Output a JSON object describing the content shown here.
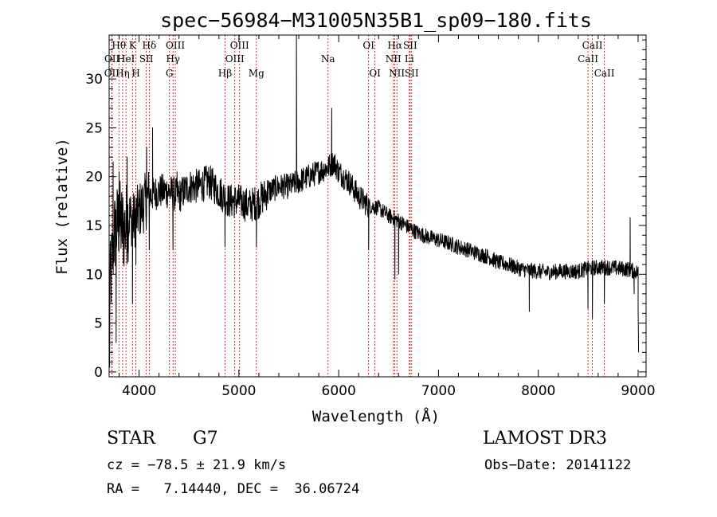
{
  "chart_data": {
    "type": "line",
    "title": "spec−56984−M31005N35B1_sp09−180.fits",
    "xlabel": "Wavelength (Å)",
    "ylabel": "Flux (relative)",
    "xlim": [
      3700,
      9080
    ],
    "ylim": [
      -0.5,
      34.5
    ],
    "x_ticks": [
      4000,
      5000,
      6000,
      7000,
      8000,
      9000
    ],
    "x_tick_labels": [
      "4000",
      "5000",
      "6000",
      "7000",
      "8000",
      "9000"
    ],
    "y_ticks": [
      0,
      5,
      10,
      15,
      20,
      25,
      30
    ],
    "y_tick_labels": [
      "0",
      "5",
      "10",
      "15",
      "20",
      "25",
      "30"
    ],
    "spectrum_knots": [
      [
        3700,
        7.5
      ],
      [
        3750,
        14
      ],
      [
        3800,
        15.5
      ],
      [
        3850,
        14.5
      ],
      [
        3900,
        16
      ],
      [
        3950,
        15.5
      ],
      [
        4000,
        16.5
      ],
      [
        4100,
        18
      ],
      [
        4200,
        18.5
      ],
      [
        4300,
        18.5
      ],
      [
        4400,
        18
      ],
      [
        4500,
        19
      ],
      [
        4600,
        19
      ],
      [
        4700,
        19.5
      ],
      [
        4800,
        18.5
      ],
      [
        4900,
        17.5
      ],
      [
        5000,
        17.5
      ],
      [
        5100,
        17
      ],
      [
        5200,
        17.5
      ],
      [
        5300,
        18.5
      ],
      [
        5400,
        19
      ],
      [
        5500,
        19
      ],
      [
        5600,
        19.5
      ],
      [
        5700,
        20
      ],
      [
        5800,
        20.5
      ],
      [
        5900,
        21
      ],
      [
        5950,
        21.5
      ],
      [
        6000,
        20.5
      ],
      [
        6100,
        19.5
      ],
      [
        6200,
        18
      ],
      [
        6300,
        17
      ],
      [
        6400,
        16.8
      ],
      [
        6500,
        16
      ],
      [
        6600,
        15.5
      ],
      [
        6700,
        14.8
      ],
      [
        6800,
        14.2
      ],
      [
        6900,
        13.8
      ],
      [
        7000,
        13.5
      ],
      [
        7100,
        13.2
      ],
      [
        7200,
        12.8
      ],
      [
        7300,
        12.5
      ],
      [
        7400,
        12.1
      ],
      [
        7500,
        11.8
      ],
      [
        7600,
        11.2
      ],
      [
        7700,
        11
      ],
      [
        7800,
        10.6
      ],
      [
        7900,
        10.4
      ],
      [
        8000,
        10.3
      ],
      [
        8100,
        10.2
      ],
      [
        8200,
        10.3
      ],
      [
        8300,
        10.3
      ],
      [
        8400,
        10.3
      ],
      [
        8500,
        10.6
      ],
      [
        8600,
        10.7
      ],
      [
        8700,
        10.7
      ],
      [
        8800,
        10.6
      ],
      [
        8900,
        10.5
      ],
      [
        9000,
        10.2
      ],
      [
        9060,
        4
      ]
    ],
    "spectrum_features": [
      [
        3705,
        0.5
      ],
      [
        3740,
        21.5
      ],
      [
        3770,
        3
      ],
      [
        3800,
        20.5
      ],
      [
        3880,
        22
      ],
      [
        3934,
        7
      ],
      [
        3968,
        11
      ],
      [
        4075,
        23
      ],
      [
        4102,
        12.5
      ],
      [
        4135,
        25
      ],
      [
        4340,
        12.5
      ],
      [
        4380,
        20.5
      ],
      [
        4861,
        12.8
      ],
      [
        5175,
        12.8
      ],
      [
        5577,
        34.5
      ],
      [
        5600,
        18.5
      ],
      [
        5893,
        20.5
      ],
      [
        5930,
        27
      ],
      [
        6300,
        12.5
      ],
      [
        6563,
        9.5
      ],
      [
        6600,
        10
      ],
      [
        6870,
        13.5
      ],
      [
        7910,
        6.2
      ],
      [
        8498,
        6.5
      ],
      [
        8542,
        5.5
      ],
      [
        8662,
        7
      ],
      [
        8920,
        15.8
      ],
      [
        8960,
        8
      ],
      [
        9000,
        6.5
      ],
      [
        9005,
        2
      ]
    ],
    "emission_lines": [
      {
        "wavelength": 3727,
        "label": "OII",
        "row": 2
      },
      {
        "wavelength": 3729,
        "label": "OII",
        "row": 1
      },
      {
        "wavelength": 3798,
        "label": "Hθ",
        "row": 0
      },
      {
        "wavelength": 3835,
        "label": "Hη",
        "row": 2
      },
      {
        "wavelength": 3869,
        "label": "HeI",
        "row": 1
      },
      {
        "wavelength": 3934,
        "label": "K",
        "row": 0
      },
      {
        "wavelength": 3968,
        "label": "H",
        "row": 2
      },
      {
        "wavelength": 4072,
        "label": "SII",
        "row": 1
      },
      {
        "wavelength": 4102,
        "label": "Hδ",
        "row": 0
      },
      {
        "wavelength": 4304,
        "label": "G",
        "row": 2
      },
      {
        "wavelength": 4340,
        "label": "Hγ",
        "row": 1
      },
      {
        "wavelength": 4363,
        "label": "OIII",
        "row": 0
      },
      {
        "wavelength": 4861,
        "label": "Hβ",
        "row": 2
      },
      {
        "wavelength": 4959,
        "label": "OIII",
        "row": 1
      },
      {
        "wavelength": 5007,
        "label": "OIII",
        "row": 0
      },
      {
        "wavelength": 5175,
        "label": "Mg",
        "row": 2
      },
      {
        "wavelength": 5893,
        "label": "Na",
        "row": 1
      },
      {
        "wavelength": 6300,
        "label": "OI",
        "row": 0
      },
      {
        "wavelength": 6363,
        "label": "OI",
        "row": 2
      },
      {
        "wavelength": 6548,
        "label": "NII",
        "row": 1
      },
      {
        "wavelength": 6563,
        "label": "Hα",
        "row": 0
      },
      {
        "wavelength": 6583,
        "label": "NII",
        "row": 2
      },
      {
        "wavelength": 6708,
        "label": "Li",
        "row": 1
      },
      {
        "wavelength": 6716,
        "label": "SII",
        "row": 0
      },
      {
        "wavelength": 6731,
        "label": "SII",
        "row": 2
      },
      {
        "wavelength": 8498,
        "label": "CaII",
        "row": 1
      },
      {
        "wavelength": 8542,
        "label": "CaII",
        "row": 0
      },
      {
        "wavelength": 8662,
        "label": "CaII",
        "row": 2
      }
    ],
    "line_color": "#000000",
    "marker_color": "#cc0000",
    "grid": false
  },
  "info": {
    "object_class": "STAR",
    "subclass": "G7",
    "survey": "LAMOST DR3",
    "redshift_text": "cz = −78.5 ± 21.9 km/s",
    "obs_date_text": "Obs−Date: 20141122",
    "coords_text": "RA =   7.14440, DEC =  36.06724"
  }
}
